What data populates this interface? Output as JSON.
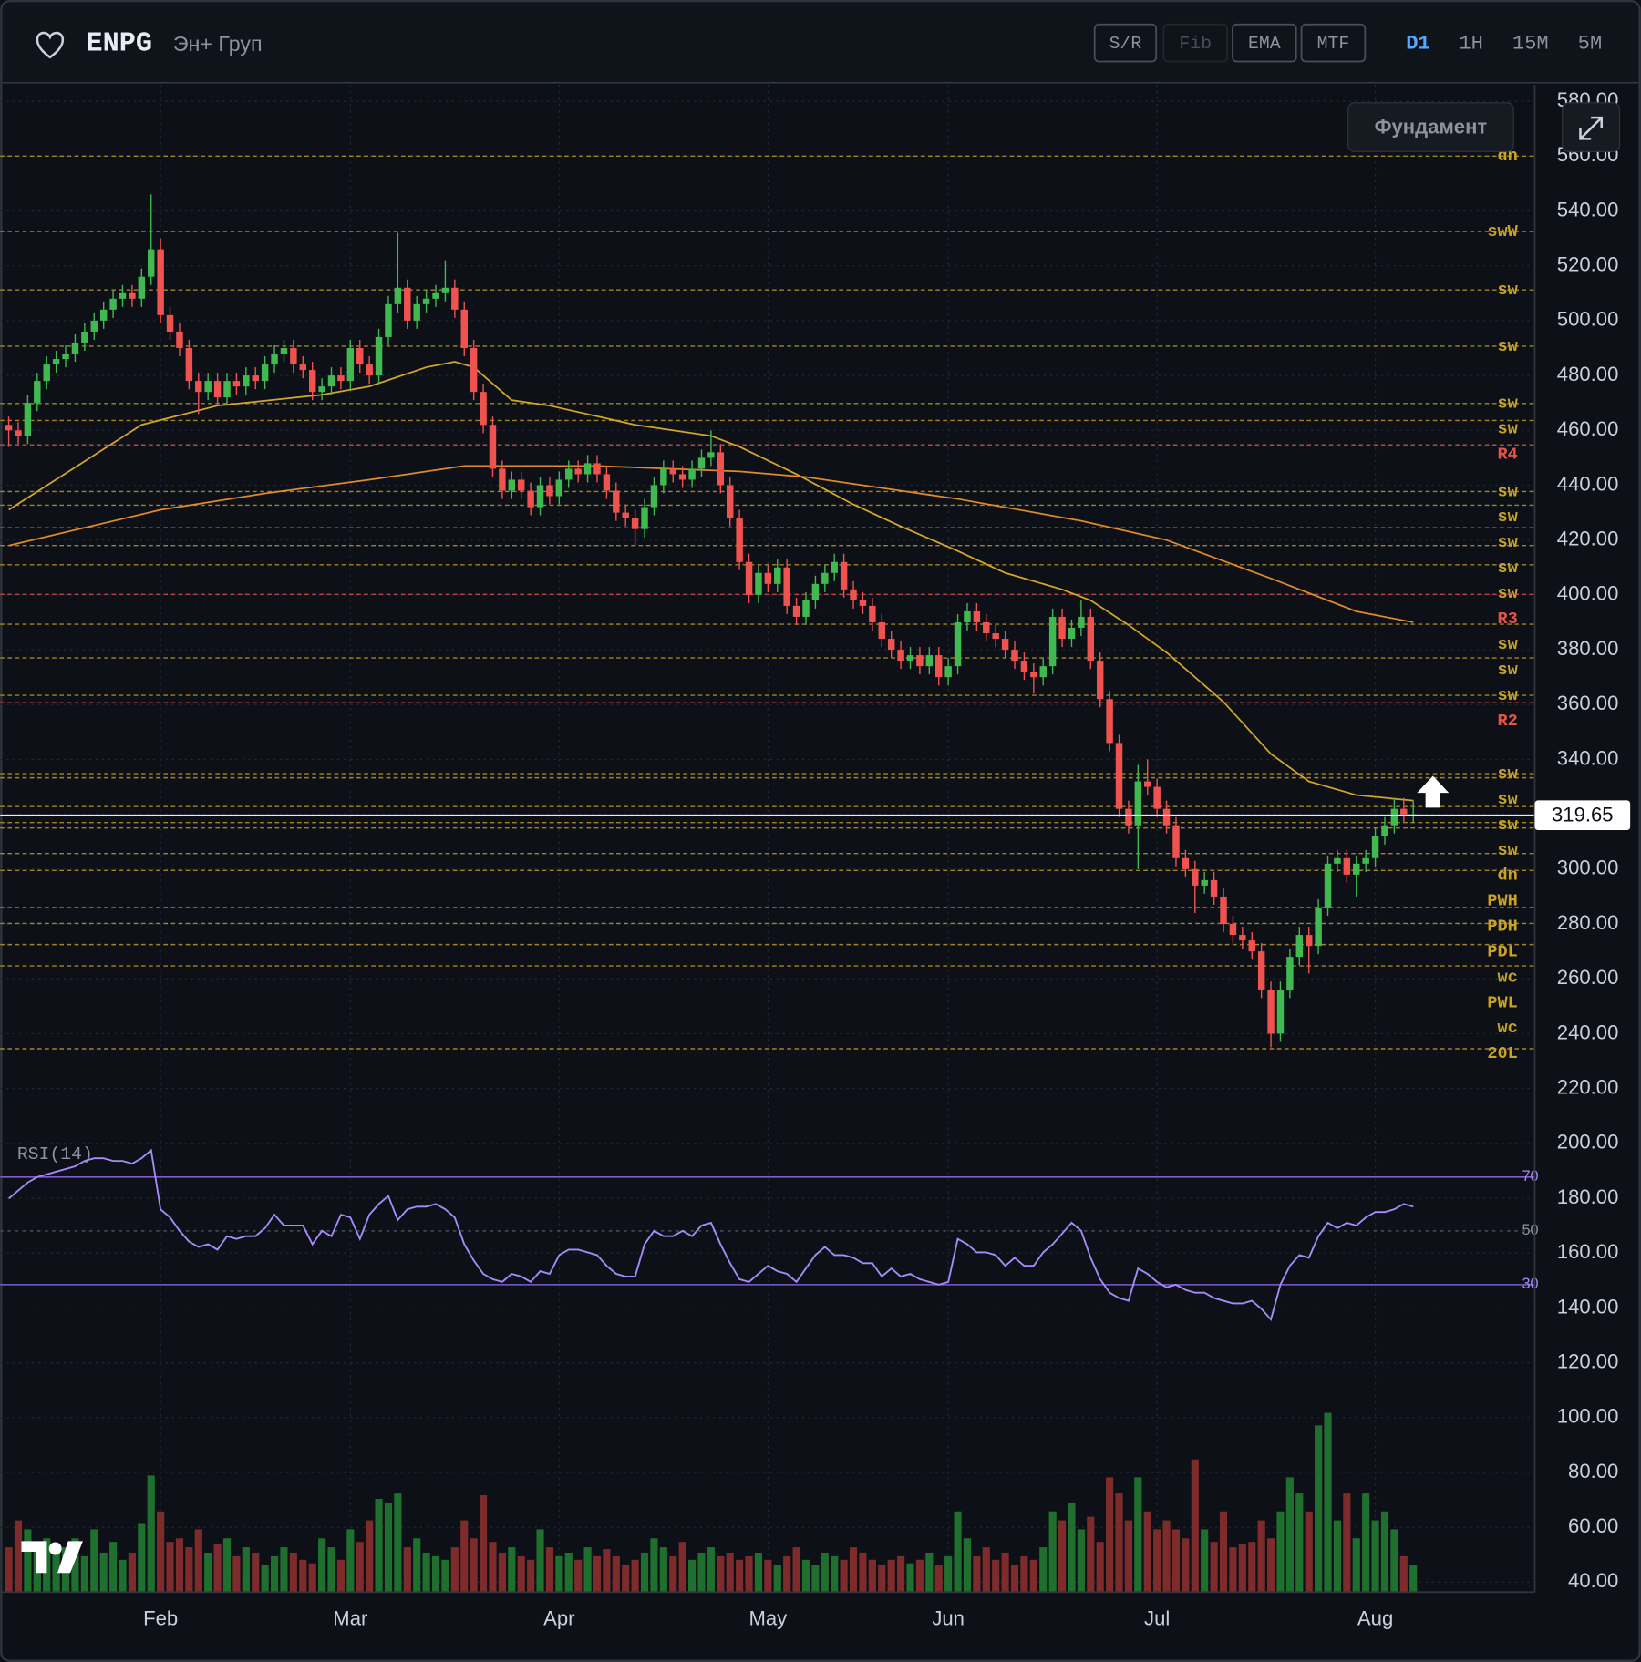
{
  "chart_data": {
    "type": "candlestick",
    "title": "ENPG",
    "subtitle": "Эн+ Груп",
    "toolbar": {
      "buttons": [
        "S/R",
        "Fib",
        "EMA",
        "MTF"
      ],
      "disabled_button": 1,
      "timeframes": [
        "D1",
        "1H",
        "15M",
        "5M"
      ],
      "active_timeframe": 0,
      "fundamentals_button": "Фундамент"
    },
    "xlim": [
      -0.9,
      160.8
    ],
    "xticks": [
      {
        "value": 16,
        "label": "Feb"
      },
      {
        "value": 36,
        "label": "Mar"
      },
      {
        "value": 58,
        "label": "Apr"
      },
      {
        "value": 80,
        "label": "May"
      },
      {
        "value": 99,
        "label": "Jun"
      },
      {
        "value": 121,
        "label": "Jul"
      },
      {
        "value": 144,
        "label": "Aug"
      }
    ],
    "ylim": [
      36.4,
      586
    ],
    "yticks": [
      {
        "value": 40,
        "label": "40.00"
      },
      {
        "value": 60,
        "label": "60.00"
      },
      {
        "value": 80,
        "label": "80.00"
      },
      {
        "value": 100,
        "label": "100.00"
      },
      {
        "value": 120,
        "label": "120.00"
      },
      {
        "value": 140,
        "label": "140.00"
      },
      {
        "value": 160,
        "label": "160.00"
      },
      {
        "value": 180,
        "label": "180.00"
      },
      {
        "value": 200,
        "label": "200.00"
      },
      {
        "value": 220,
        "label": "220.00"
      },
      {
        "value": 240,
        "label": "240.00"
      },
      {
        "value": 260,
        "label": "260.00"
      },
      {
        "value": 280,
        "label": "280.00"
      },
      {
        "value": 300,
        "label": "300.00"
      },
      {
        "value": 320,
        "label": "320.00"
      },
      {
        "value": 340,
        "label": "340.00"
      },
      {
        "value": 360,
        "label": "360.00"
      },
      {
        "value": 380,
        "label": "380.00"
      },
      {
        "value": 400,
        "label": "400.00"
      },
      {
        "value": 420,
        "label": "420.00"
      },
      {
        "value": 440,
        "label": "440.00"
      },
      {
        "value": 460,
        "label": "460.00"
      },
      {
        "value": 480,
        "label": "480.00"
      },
      {
        "value": 500,
        "label": "500.00"
      },
      {
        "value": 520,
        "label": "520.00"
      },
      {
        "value": 540,
        "label": "540.00"
      },
      {
        "value": 560,
        "label": "560.00"
      },
      {
        "value": 580,
        "label": "580.00"
      }
    ],
    "grid": true,
    "up_color": "#3fb950",
    "down_color": "#f0524f",
    "open": [
      462,
      460,
      458,
      470,
      478,
      484,
      486,
      488,
      492,
      496,
      500,
      504,
      508,
      510,
      508,
      516,
      526,
      502,
      496,
      490,
      478,
      474,
      478,
      472,
      478,
      476,
      480,
      478,
      484,
      488,
      490,
      484,
      482,
      474,
      476,
      480,
      478,
      490,
      484,
      480,
      494,
      506,
      512,
      500,
      506,
      508,
      510,
      512,
      504,
      490,
      474,
      462,
      446,
      438,
      442,
      438,
      432,
      440,
      436,
      442,
      446,
      444,
      448,
      444,
      438,
      430,
      428,
      424,
      432,
      440,
      446,
      444,
      442,
      446,
      450,
      452,
      440,
      428,
      412,
      400,
      408,
      404,
      410,
      396,
      392,
      398,
      404,
      408,
      412,
      402,
      398,
      396,
      390,
      384,
      380,
      376,
      378,
      374,
      378,
      370,
      374,
      390,
      394,
      390,
      386,
      384,
      380,
      376,
      372,
      370,
      374,
      392,
      384,
      388,
      392,
      376,
      362,
      346,
      322,
      316,
      332,
      330,
      322,
      316,
      304,
      300,
      294,
      296,
      290,
      280,
      276,
      274,
      270,
      256,
      240,
      256,
      268,
      276,
      272,
      286,
      302,
      304,
      298,
      302,
      304,
      312,
      316,
      322,
      320
    ],
    "high": [
      465,
      463,
      473,
      481,
      487,
      489,
      491,
      495,
      499,
      503,
      507,
      511,
      513,
      513,
      519,
      546,
      530,
      505,
      499,
      493,
      481,
      481,
      481,
      481,
      481,
      483,
      483,
      487,
      491,
      493,
      493,
      487,
      485,
      479,
      483,
      483,
      493,
      493,
      487,
      497,
      509,
      532,
      515,
      509,
      511,
      513,
      522,
      515,
      507,
      493,
      477,
      465,
      449,
      445,
      445,
      441,
      443,
      443,
      445,
      449,
      449,
      451,
      451,
      447,
      441,
      433,
      431,
      435,
      443,
      449,
      449,
      447,
      449,
      453,
      460,
      455,
      443,
      431,
      415,
      411,
      411,
      413,
      413,
      399,
      401,
      407,
      411,
      415,
      415,
      405,
      401,
      399,
      393,
      387,
      383,
      381,
      381,
      381,
      381,
      377,
      393,
      397,
      397,
      393,
      389,
      387,
      383,
      379,
      375,
      377,
      395,
      395,
      391,
      398,
      395,
      379,
      365,
      349,
      325,
      338,
      340,
      333,
      325,
      319,
      307,
      303,
      299,
      299,
      293,
      283,
      279,
      277,
      273,
      259,
      259,
      271,
      279,
      279,
      289,
      305,
      307,
      307,
      305,
      307,
      315,
      319,
      326,
      326,
      325
    ],
    "low": [
      454,
      455,
      455,
      467,
      475,
      481,
      483,
      485,
      489,
      493,
      497,
      501,
      505,
      505,
      505,
      513,
      499,
      493,
      487,
      475,
      466,
      471,
      469,
      469,
      473,
      473,
      475,
      475,
      481,
      485,
      481,
      479,
      471,
      471,
      473,
      475,
      475,
      481,
      477,
      477,
      491,
      503,
      497,
      497,
      503,
      505,
      507,
      501,
      487,
      471,
      459,
      443,
      435,
      435,
      435,
      429,
      429,
      433,
      433,
      439,
      441,
      441,
      441,
      435,
      427,
      425,
      418,
      421,
      429,
      437,
      441,
      439,
      439,
      443,
      447,
      437,
      425,
      409,
      397,
      397,
      401,
      401,
      393,
      389,
      389,
      395,
      401,
      405,
      399,
      395,
      393,
      387,
      381,
      377,
      373,
      373,
      371,
      371,
      367,
      367,
      371,
      387,
      387,
      383,
      381,
      377,
      373,
      369,
      364,
      367,
      371,
      381,
      381,
      385,
      373,
      359,
      343,
      319,
      313,
      300,
      327,
      319,
      313,
      301,
      297,
      284,
      291,
      287,
      277,
      273,
      271,
      267,
      253,
      235,
      237,
      253,
      265,
      262,
      269,
      283,
      299,
      295,
      290,
      299,
      301,
      309,
      313,
      317,
      317
    ],
    "close": [
      460,
      458,
      470,
      478,
      484,
      486,
      488,
      492,
      496,
      500,
      504,
      508,
      510,
      508,
      516,
      526,
      502,
      496,
      490,
      478,
      474,
      478,
      472,
      478,
      476,
      480,
      478,
      484,
      488,
      490,
      484,
      482,
      474,
      476,
      480,
      478,
      490,
      484,
      480,
      494,
      506,
      512,
      500,
      506,
      508,
      510,
      512,
      504,
      490,
      474,
      462,
      446,
      438,
      442,
      438,
      432,
      440,
      436,
      442,
      446,
      444,
      448,
      444,
      438,
      430,
      428,
      424,
      432,
      440,
      446,
      444,
      442,
      446,
      450,
      452,
      440,
      428,
      412,
      400,
      408,
      404,
      410,
      396,
      392,
      398,
      404,
      408,
      412,
      402,
      398,
      396,
      390,
      384,
      380,
      376,
      378,
      374,
      378,
      370,
      374,
      390,
      394,
      390,
      386,
      384,
      380,
      376,
      372,
      370,
      374,
      392,
      384,
      388,
      392,
      376,
      362,
      346,
      322,
      316,
      332,
      330,
      322,
      316,
      304,
      300,
      294,
      296,
      290,
      280,
      276,
      274,
      270,
      256,
      240,
      256,
      268,
      276,
      272,
      286,
      302,
      304,
      298,
      302,
      304,
      312,
      316,
      322,
      320,
      320
    ],
    "last_price": 319.65,
    "ema_lines": [
      {
        "color": "#d4a72c",
        "x": [
          0,
          14,
          22,
          33,
          38,
          44,
          47,
          49,
          53,
          57,
          66,
          74,
          77,
          83,
          89,
          94,
          100,
          105,
          111,
          114,
          118,
          122,
          128,
          133,
          137,
          142,
          148
        ],
        "values": [
          431,
          462,
          469,
          473,
          476,
          483,
          485,
          483,
          471,
          469,
          462,
          458,
          454,
          444,
          433,
          425,
          416,
          408,
          402,
          398,
          389,
          379,
          361,
          342,
          332,
          327,
          325
        ]
      },
      {
        "color": "#e08a2a",
        "x": [
          0,
          16,
          27,
          38,
          48,
          62,
          77,
          84,
          100,
          113,
          122,
          133,
          142,
          148
        ],
        "values": [
          418,
          431,
          437,
          442,
          447,
          447,
          445,
          443,
          435,
          427,
          420,
          406,
          394,
          390
        ]
      }
    ],
    "levels": [
      {
        "value": 560,
        "label": "dn",
        "color": "#c9a227"
      },
      {
        "value": 532.5,
        "label": "swW",
        "color": "#c9a227"
      },
      {
        "value": 511.2,
        "label": "sw",
        "color": "#c9a227"
      },
      {
        "value": 490.7,
        "label": "sw",
        "color": "#c9a227"
      },
      {
        "value": 469.8,
        "label": "sw",
        "color": "#c9a227"
      },
      {
        "value": 463.6,
        "label": "sw",
        "color": "#c9a227"
      },
      {
        "value": 454.7,
        "label": "R4",
        "color": "#e5534b"
      },
      {
        "value": 437.7,
        "label": "sw",
        "color": "#c9a227"
      },
      {
        "value": 432.7,
        "label": "sw",
        "color": "#c9a227"
      },
      {
        "value": 424.5,
        "label": "sw",
        "color": "#c9a227"
      },
      {
        "value": 418,
        "label": "sw",
        "color": "#c9a227"
      },
      {
        "value": 411,
        "label": "sw",
        "color": "#c9a227"
      },
      {
        "value": 400.2,
        "label": "R3",
        "color": "#e5534b"
      },
      {
        "value": 389.3,
        "label": "sw",
        "color": "#c9a227"
      },
      {
        "value": 377,
        "label": "sw",
        "color": "#c9a227"
      },
      {
        "value": 363.4,
        "label": "sw",
        "color": "#c9a227"
      },
      {
        "value": 360.7,
        "label": "R2",
        "color": "#e5534b"
      },
      {
        "value": 334.8,
        "label": "sw",
        "color": "#c9a227"
      },
      {
        "value": 333.3,
        "label": "sw",
        "color": "#c9a227"
      },
      {
        "value": 322.8,
        "label": "sw",
        "color": "#c9a227"
      },
      {
        "value": 317,
        "label": "sw",
        "color": "#c9a227"
      },
      {
        "value": 315,
        "label": "dn",
        "color": "#c9a227"
      },
      {
        "value": 305.7,
        "label": "PWH",
        "color": "#c9a227"
      },
      {
        "value": 299.5,
        "label": "PDH",
        "color": "#c9a227"
      },
      {
        "value": 286,
        "label": "PDL",
        "color": "#c9a227"
      },
      {
        "value": 280.2,
        "label": "wc",
        "color": "#c9a227"
      },
      {
        "value": 272.5,
        "label": "PWL",
        "color": "#c9a227"
      },
      {
        "value": 264.7,
        "label": "wc",
        "color": "#c9a227"
      },
      {
        "value": 234.5,
        "label": "20L",
        "color": "#c9a227"
      }
    ],
    "rsi": {
      "label": "RSI(14)",
      "color": "#a78bfa",
      "lim": [
        15,
        84
      ],
      "levels": [
        70,
        50,
        30
      ],
      "values": [
        62,
        65,
        68,
        70,
        71,
        72,
        73,
        74,
        76,
        77,
        77,
        76,
        76,
        75,
        77,
        80,
        58,
        55,
        50,
        46,
        44,
        45,
        43,
        48,
        47,
        48,
        48,
        51,
        56,
        52,
        52,
        52,
        45,
        50,
        48,
        56,
        55,
        47,
        56,
        60,
        63,
        54,
        58,
        59,
        59,
        60,
        58,
        55,
        45,
        39,
        34,
        32,
        31,
        34,
        33,
        31,
        35,
        34,
        41,
        43,
        43,
        42,
        41,
        37,
        34,
        33,
        33,
        45,
        50,
        48,
        48,
        50,
        48,
        52,
        53,
        45,
        38,
        32,
        31,
        34,
        37,
        35,
        34,
        31,
        36,
        41,
        44,
        41,
        41,
        40,
        38,
        38,
        33,
        36,
        33,
        34,
        32,
        31,
        30,
        31,
        47,
        45,
        42,
        42,
        41,
        37,
        40,
        37,
        37,
        42,
        45,
        49,
        53,
        50,
        40,
        32,
        27,
        25,
        24,
        36,
        34,
        31,
        29,
        30,
        28,
        27,
        27,
        25,
        24,
        23,
        23,
        24,
        21,
        17,
        30,
        37,
        41,
        40,
        48,
        53,
        51,
        53,
        52,
        55,
        57,
        57,
        58,
        60,
        59
      ]
    },
    "volume": {
      "lim": [
        0,
        100
      ],
      "values": [
        25,
        40,
        35,
        28,
        30,
        22,
        25,
        30,
        20,
        35,
        22,
        28,
        18,
        22,
        38,
        65,
        45,
        28,
        30,
        25,
        35,
        22,
        27,
        30,
        20,
        25,
        22,
        15,
        20,
        25,
        22,
        18,
        16,
        30,
        25,
        18,
        35,
        28,
        40,
        52,
        50,
        55,
        25,
        30,
        22,
        20,
        18,
        25,
        40,
        30,
        54,
        28,
        22,
        25,
        20,
        18,
        35,
        25,
        20,
        22,
        18,
        25,
        20,
        24,
        20,
        15,
        18,
        22,
        30,
        25,
        20,
        28,
        18,
        22,
        25,
        20,
        22,
        18,
        20,
        22,
        18,
        15,
        20,
        25,
        18,
        15,
        22,
        20,
        18,
        25,
        22,
        18,
        15,
        18,
        20,
        16,
        18,
        22,
        15,
        20,
        45,
        30,
        20,
        25,
        18,
        22,
        15,
        20,
        18,
        25,
        45,
        40,
        50,
        35,
        42,
        28,
        64,
        55,
        40,
        64,
        45,
        35,
        40,
        35,
        30,
        74,
        35,
        28,
        45,
        25,
        27,
        28,
        40,
        30,
        45,
        64,
        55,
        45,
        93,
        100,
        40,
        55,
        30,
        55,
        40,
        45,
        35,
        20,
        15
      ]
    }
  }
}
